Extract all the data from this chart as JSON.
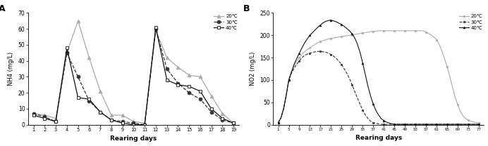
{
  "panel_A": {
    "title": "A",
    "xlabel": "Rearing days",
    "ylabel": "NH4 (mg/L)",
    "ylim": [
      0,
      70
    ],
    "yticks": [
      0,
      10,
      20,
      30,
      40,
      50,
      60,
      70
    ],
    "xticks": [
      1,
      2,
      3,
      4,
      5,
      6,
      7,
      8,
      9,
      10,
      11,
      12,
      13,
      14,
      15,
      16,
      17,
      18,
      19
    ],
    "series": {
      "20C": {
        "x": [
          1,
          2,
          3,
          4,
          5,
          6,
          7,
          8,
          9,
          10,
          11,
          12,
          13,
          14,
          15,
          16,
          17,
          18,
          19
        ],
        "y": [
          7,
          6,
          4,
          45,
          65,
          42,
          21,
          6,
          6,
          2,
          1,
          59,
          42,
          36,
          31,
          30,
          18,
          7,
          1
        ],
        "color": "#aaaaaa",
        "linestyle": "-",
        "marker": "^",
        "label": "20℃",
        "linewidth": 0.9,
        "markersize": 3.5,
        "markerfacecolor": "#aaaaaa",
        "markeredgecolor": "#aaaaaa"
      },
      "30C": {
        "x": [
          1,
          2,
          3,
          4,
          5,
          6,
          7,
          8,
          9,
          10,
          11,
          12,
          13,
          14,
          15,
          16,
          17,
          18,
          19
        ],
        "y": [
          7,
          5,
          2,
          45,
          30,
          15,
          8,
          3,
          2,
          1,
          0,
          60,
          35,
          26,
          20,
          16,
          8,
          3,
          1
        ],
        "color": "#333333",
        "linestyle": "--",
        "marker": "o",
        "label": "30℃",
        "linewidth": 0.9,
        "markersize": 3.5,
        "markerfacecolor": "#333333",
        "markeredgecolor": "#333333"
      },
      "40C": {
        "x": [
          1,
          2,
          3,
          4,
          5,
          6,
          7,
          8,
          9,
          10,
          11,
          12,
          13,
          14,
          15,
          16,
          17,
          18,
          19
        ],
        "y": [
          6,
          4,
          2,
          48,
          17,
          16,
          8,
          3,
          1,
          0,
          0,
          61,
          28,
          25,
          24,
          21,
          10,
          4,
          1
        ],
        "color": "#111111",
        "linestyle": "-",
        "marker": "s",
        "label": "40℃",
        "linewidth": 0.9,
        "markersize": 3.5,
        "markerfacecolor": "white",
        "markeredgecolor": "#111111"
      }
    }
  },
  "panel_B": {
    "title": "B",
    "xlabel": "Rearing days",
    "ylabel": "NO2 (mg/L)",
    "ylim": [
      0,
      250
    ],
    "yticks": [
      0,
      50,
      100,
      150,
      200,
      250
    ],
    "xtick_labels": [
      "1",
      "5",
      "9",
      "13",
      "17",
      "21",
      "25",
      "29",
      "33",
      "37",
      "41",
      "45",
      "49",
      "53",
      "57",
      "61",
      "65",
      "69",
      "73",
      "77"
    ],
    "xtick_vals": [
      1,
      5,
      9,
      13,
      17,
      21,
      25,
      29,
      33,
      37,
      41,
      45,
      49,
      53,
      57,
      61,
      65,
      69,
      73,
      77
    ],
    "series": {
      "20C": {
        "color": "#aaaaaa",
        "linestyle": "-",
        "marker": "s",
        "label": "20℃",
        "linewidth": 0.8,
        "markersize": 2,
        "markerfacecolor": "#aaaaaa",
        "markeredgecolor": "#aaaaaa",
        "markevery": 4,
        "x": [
          1,
          2,
          3,
          4,
          5,
          6,
          7,
          8,
          9,
          10,
          11,
          12,
          13,
          14,
          15,
          16,
          17,
          18,
          19,
          20,
          21,
          22,
          23,
          24,
          25,
          26,
          27,
          28,
          29,
          30,
          31,
          32,
          33,
          34,
          35,
          36,
          37,
          38,
          39,
          40,
          41,
          42,
          43,
          44,
          45,
          46,
          47,
          48,
          49,
          50,
          51,
          52,
          53,
          54,
          55,
          56,
          57,
          58,
          59,
          60,
          61,
          62,
          63,
          64,
          65,
          66,
          67,
          68,
          69,
          70,
          71,
          72,
          73,
          74,
          75,
          76,
          77
        ],
        "y": [
          5,
          15,
          35,
          65,
          100,
          118,
          130,
          142,
          150,
          158,
          163,
          168,
          172,
          176,
          180,
          183,
          186,
          188,
          190,
          192,
          193,
          194,
          195,
          196,
          197,
          198,
          199,
          200,
          201,
          202,
          203,
          204,
          205,
          206,
          207,
          208,
          209,
          209,
          210,
          210,
          210,
          210,
          210,
          210,
          210,
          210,
          210,
          210,
          210,
          210,
          210,
          210,
          210,
          210,
          210,
          210,
          207,
          204,
          200,
          196,
          190,
          180,
          165,
          148,
          130,
          108,
          85,
          62,
          45,
          30,
          20,
          14,
          10,
          8,
          6,
          5,
          4
        ]
      },
      "30C": {
        "color": "#333333",
        "linestyle": "--",
        "marker": "s",
        "label": "30℃",
        "linewidth": 0.8,
        "markersize": 2,
        "markerfacecolor": "#333333",
        "markeredgecolor": "#333333",
        "markevery": 4,
        "x": [
          1,
          2,
          3,
          4,
          5,
          6,
          7,
          8,
          9,
          10,
          11,
          12,
          13,
          14,
          15,
          16,
          17,
          18,
          19,
          20,
          21,
          22,
          23,
          24,
          25,
          26,
          27,
          28,
          29,
          30,
          31,
          32,
          33,
          34,
          35,
          36,
          37,
          38,
          39,
          40,
          41,
          42,
          43,
          44,
          45,
          46,
          47,
          48,
          49,
          50,
          51,
          52,
          53,
          54,
          55,
          56,
          57,
          58,
          59,
          60,
          61,
          62,
          63,
          64,
          65,
          66,
          67,
          68,
          69,
          70,
          71,
          72,
          73,
          74,
          75,
          76,
          77
        ],
        "y": [
          5,
          15,
          35,
          65,
          100,
          115,
          126,
          135,
          143,
          150,
          155,
          158,
          160,
          162,
          163,
          164,
          164,
          163,
          162,
          160,
          157,
          153,
          148,
          142,
          135,
          125,
          115,
          103,
          89,
          74,
          60,
          46,
          33,
          22,
          14,
          8,
          5,
          3,
          2,
          1,
          1,
          1,
          1,
          1,
          1,
          1,
          1,
          1,
          1,
          1,
          1,
          1,
          1,
          1,
          1,
          1,
          1,
          1,
          1,
          1,
          1,
          1,
          1,
          1,
          1,
          1,
          1,
          1,
          1,
          1,
          1,
          1,
          1,
          1,
          1,
          1,
          1
        ]
      },
      "40C": {
        "color": "#111111",
        "linestyle": "-",
        "marker": "^",
        "label": "40℃",
        "linewidth": 0.8,
        "markersize": 2,
        "markerfacecolor": "#111111",
        "markeredgecolor": "#111111",
        "markevery": 4,
        "x": [
          1,
          2,
          3,
          4,
          5,
          6,
          7,
          8,
          9,
          10,
          11,
          12,
          13,
          14,
          15,
          16,
          17,
          18,
          19,
          20,
          21,
          22,
          23,
          24,
          25,
          26,
          27,
          28,
          29,
          30,
          31,
          32,
          33,
          34,
          35,
          36,
          37,
          38,
          39,
          40,
          41,
          42,
          43,
          44,
          45,
          46,
          47,
          48,
          49,
          50,
          51,
          52,
          53,
          54,
          55,
          56,
          57,
          58,
          59,
          60,
          61,
          62,
          63,
          64,
          65,
          66,
          67,
          68,
          69,
          70,
          71,
          72,
          73,
          74,
          75,
          76,
          77
        ],
        "y": [
          5,
          15,
          35,
          65,
          100,
          118,
          135,
          148,
          160,
          172,
          183,
          192,
          200,
          206,
          212,
          218,
          223,
          228,
          231,
          233,
          234,
          232,
          230,
          227,
          224,
          220,
          215,
          210,
          203,
          194,
          180,
          162,
          138,
          112,
          86,
          64,
          46,
          32,
          22,
          14,
          9,
          6,
          4,
          2,
          1,
          1,
          1,
          1,
          1,
          1,
          1,
          1,
          1,
          1,
          1,
          1,
          1,
          1,
          1,
          1,
          1,
          1,
          1,
          1,
          1,
          1,
          1,
          1,
          1,
          1,
          1,
          1,
          1,
          1,
          1,
          1,
          1
        ]
      }
    }
  }
}
